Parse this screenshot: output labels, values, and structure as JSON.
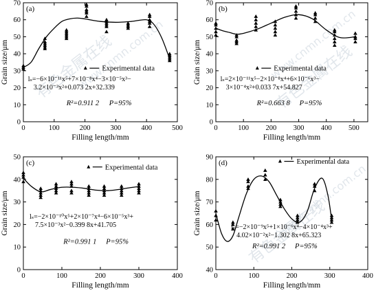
{
  "watermark": {
    "cn_text": "有色金属在线",
    "url_text": "www.cnmn.com.cn"
  },
  "chart_data": [
    {
      "type": "scatter",
      "panel_label": "(a)",
      "xlabel": "Filling length/mm",
      "ylabel": "Grain size/μm",
      "xlim": [
        0,
        500
      ],
      "ylim": [
        0,
        70
      ],
      "xticks": [
        0,
        100,
        200,
        300,
        400,
        500
      ],
      "yticks": [
        0,
        10,
        20,
        30,
        40,
        50,
        60,
        70
      ],
      "legend": {
        "label": "Experimental data",
        "placement": "center-right"
      },
      "points": [
        {
          "x": 0,
          "y": [
            31,
            32,
            33
          ]
        },
        {
          "x": 70,
          "y": [
            43,
            44,
            45,
            46,
            47,
            49
          ]
        },
        {
          "x": 140,
          "y": [
            49,
            50,
            51,
            52,
            53,
            54
          ]
        },
        {
          "x": 205,
          "y": [
            62,
            64,
            65,
            66,
            68,
            69
          ]
        },
        {
          "x": 270,
          "y": [
            53,
            56,
            57,
            58,
            59,
            60
          ]
        },
        {
          "x": 340,
          "y": [
            55,
            56,
            57,
            58
          ]
        },
        {
          "x": 410,
          "y": [
            56,
            58,
            59,
            60,
            62,
            63
          ]
        },
        {
          "x": 475,
          "y": [
            36,
            37,
            38,
            39,
            40
          ]
        }
      ],
      "fit_curve": {
        "x": [
          0,
          25,
          50,
          75,
          100,
          125,
          150,
          175,
          200,
          250,
          300,
          350,
          400,
          425,
          450,
          475
        ],
        "y": [
          32,
          35,
          43,
          50,
          55,
          59,
          60.5,
          61,
          60.5,
          59,
          58.5,
          59,
          60,
          57,
          49,
          37
        ]
      },
      "equation_line1": "lₛ=−6×10⁻¹¹x⁵+7×10⁻⁸x⁴−3×10⁻⁵x³−",
      "equation_line2": "3.2×10⁻³x²+0.073 2x+32.339",
      "r2_text": "R²=0.911 2",
      "p_text": "P=95%"
    },
    {
      "type": "scatter",
      "panel_label": "(b)",
      "xlabel": "Filling length/mm",
      "ylabel": "Grain size/μm",
      "xlim": [
        0,
        550
      ],
      "ylim": [
        0,
        70
      ],
      "xticks": [
        0,
        100,
        200,
        300,
        400,
        500
      ],
      "yticks": [
        0,
        10,
        20,
        30,
        40,
        50,
        60,
        70
      ],
      "legend": {
        "label": "Experimental data",
        "placement": "center-right"
      },
      "points": [
        {
          "x": 0,
          "y": [
            51,
            53,
            55,
            57,
            58
          ]
        },
        {
          "x": 75,
          "y": [
            46,
            47,
            48,
            50,
            51
          ]
        },
        {
          "x": 145,
          "y": [
            54,
            56,
            58,
            60,
            62
          ]
        },
        {
          "x": 215,
          "y": [
            51,
            53,
            55,
            57,
            59
          ]
        },
        {
          "x": 290,
          "y": [
            61,
            63,
            65,
            67,
            68
          ]
        },
        {
          "x": 360,
          "y": [
            59,
            61,
            63,
            64
          ]
        },
        {
          "x": 430,
          "y": [
            45,
            47,
            49,
            51,
            53,
            54
          ]
        },
        {
          "x": 505,
          "y": [
            47,
            49,
            50,
            52
          ]
        }
      ],
      "fit_curve": {
        "x": [
          0,
          25,
          50,
          75,
          100,
          150,
          200,
          250,
          300,
          350,
          400,
          450,
          505
        ],
        "y": [
          55,
          53.5,
          52.5,
          51.5,
          52,
          54.5,
          58,
          61.5,
          63,
          60.5,
          54,
          49.5,
          50
        ]
      },
      "equation_line1": "lₛ=2×10⁻¹¹x⁵−2×10⁻⁸x⁴+6×10⁻⁶x³−",
      "equation_line2": "3×10⁻⁴x²+0.033 7x+54.827",
      "r2_text": "R²=0.663 8",
      "p_text": "P=95%"
    },
    {
      "type": "scatter",
      "panel_label": "(c)",
      "xlabel": "Filling length/mm",
      "ylabel": "Grain size/μm",
      "xlim": [
        0,
        400
      ],
      "ylim": [
        0,
        50
      ],
      "xticks": [
        0,
        100,
        200,
        300,
        400
      ],
      "yticks": [
        0,
        10,
        20,
        30,
        40,
        50
      ],
      "legend": {
        "label": "Experimental data",
        "placement": "top-right"
      },
      "points": [
        {
          "x": 0,
          "y": [
            39,
            41,
            42,
            43
          ]
        },
        {
          "x": 45,
          "y": [
            32,
            33,
            34,
            35,
            36
          ]
        },
        {
          "x": 85,
          "y": [
            34,
            35,
            36,
            37,
            38
          ]
        },
        {
          "x": 125,
          "y": [
            34,
            35,
            37,
            38,
            39
          ]
        },
        {
          "x": 170,
          "y": [
            33,
            34,
            35,
            36,
            37
          ]
        },
        {
          "x": 210,
          "y": [
            33,
            34,
            35,
            36,
            37
          ]
        },
        {
          "x": 255,
          "y": [
            33,
            34,
            35,
            36,
            37
          ]
        },
        {
          "x": 300,
          "y": [
            34,
            35,
            36,
            37,
            38
          ]
        }
      ],
      "fit_curve": {
        "x": [
          0,
          20,
          45,
          70,
          100,
          130,
          160,
          190,
          220,
          250,
          280,
          300
        ],
        "y": [
          40.5,
          37,
          34.5,
          35.5,
          36.5,
          36.5,
          36,
          35.2,
          35,
          35.6,
          36.4,
          36.8
        ]
      },
      "equation_line1": "lₛ=−2×10⁻¹⁰x⁵+2×10⁻⁷x⁴−6×10⁻⁵x³+",
      "equation_line2": "7.5×10⁻³x²−0.399 8x+41.705",
      "r2_text": "R²=0.991 1",
      "p_text": "P=95%"
    },
    {
      "type": "scatter",
      "panel_label": "(d)",
      "xlabel": "Filling length/mm",
      "ylabel": "Grain size/μm",
      "xlim": [
        0,
        400
      ],
      "ylim": [
        40,
        90
      ],
      "xticks": [
        0,
        100,
        200,
        300,
        400
      ],
      "yticks": [
        40,
        50,
        60,
        70,
        80,
        90
      ],
      "legend": {
        "label": "Experimental data",
        "placement": "top-right"
      },
      "points": [
        {
          "x": 0,
          "y": [
            62,
            64,
            66
          ]
        },
        {
          "x": 45,
          "y": [
            58,
            60,
            61
          ]
        },
        {
          "x": 85,
          "y": [
            76,
            77,
            79,
            80
          ]
        },
        {
          "x": 130,
          "y": [
            80,
            82,
            84
          ]
        },
        {
          "x": 170,
          "y": [
            68,
            69,
            70,
            71
          ]
        },
        {
          "x": 215,
          "y": [
            61,
            62,
            63,
            64
          ]
        },
        {
          "x": 260,
          "y": [
            75,
            77,
            78
          ]
        },
        {
          "x": 305,
          "y": [
            61,
            62,
            63,
            64
          ]
        }
      ],
      "fit_curve": {
        "x": [
          0,
          15,
          30,
          45,
          60,
          80,
          100,
          120,
          140,
          160,
          180,
          200,
          220,
          240,
          260,
          280,
          295,
          305
        ],
        "y": [
          65,
          56,
          52.5,
          55,
          63,
          73.5,
          80,
          81.5,
          79,
          73,
          67,
          62.5,
          61,
          65.5,
          76,
          80.5,
          73,
          62
        ]
      },
      "equation_line1": "lₛ=−2×10⁻⁹x⁵+1×10⁻⁶x⁴−4×10⁻⁴x³+",
      "equation_line2": "4.02×10⁻²x²−1.302 8x+65.323",
      "r2_text": "R²=0.991 2",
      "p_text": "P=95%"
    }
  ]
}
